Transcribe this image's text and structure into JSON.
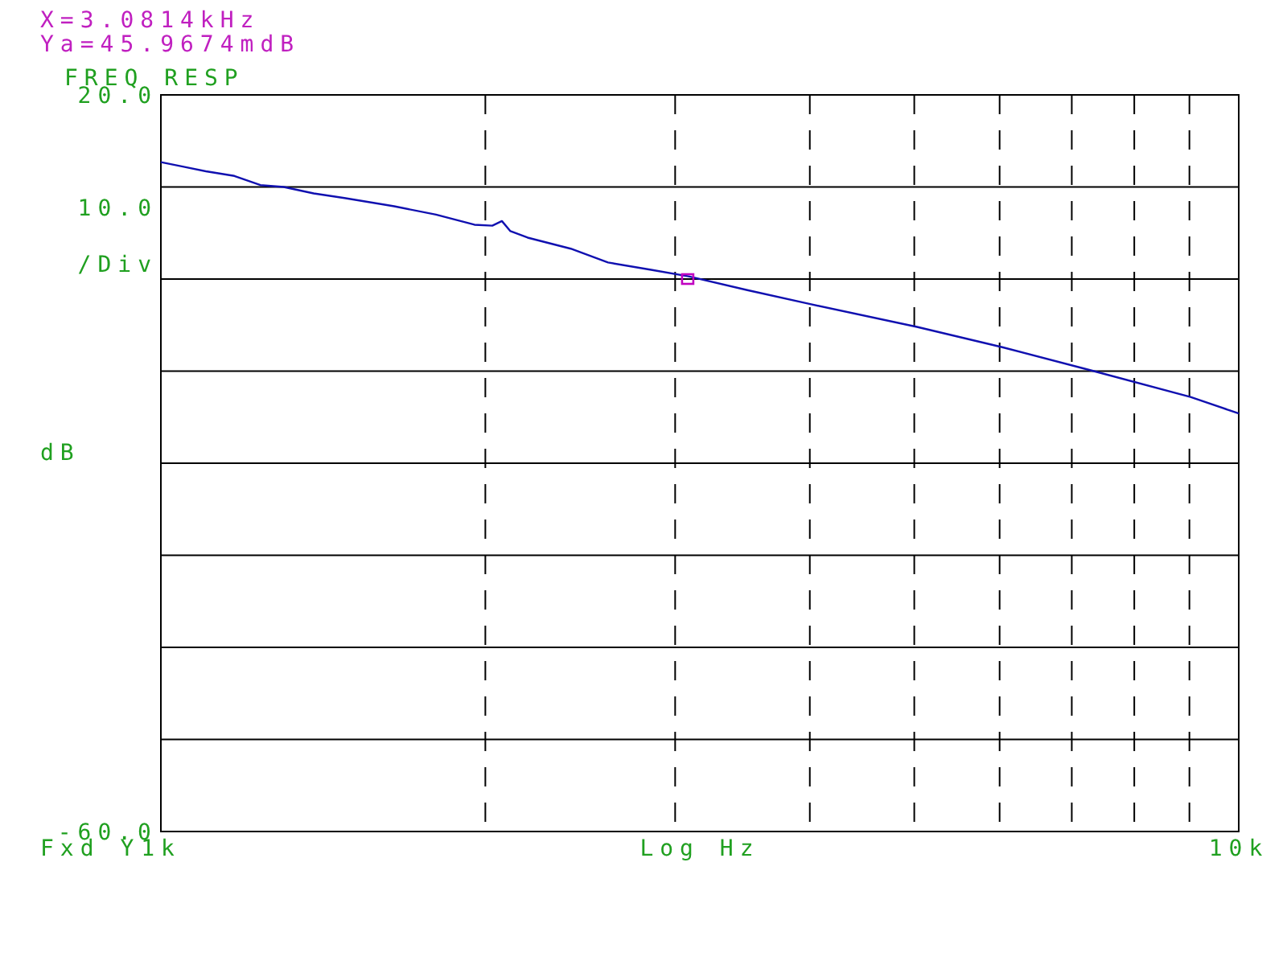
{
  "chart_data": {
    "type": "line",
    "title": "FREQ RESP",
    "xlabel": "Log Hz",
    "ylabel": "dB",
    "log": "x",
    "annotations": [
      "X=3.0814kHz",
      "Ya=45.9674mdB",
      "Fxd Y",
      "10.0 /Div"
    ],
    "xlim": [
      1000,
      10000
    ],
    "xticks": [
      {
        "value": 1000,
        "label": "1k"
      },
      {
        "value": 2000,
        "label": null
      },
      {
        "value": 3000,
        "label": null
      },
      {
        "value": 4000,
        "label": null
      },
      {
        "value": 5000,
        "label": null
      },
      {
        "value": 6000,
        "label": null
      },
      {
        "value": 7000,
        "label": null
      },
      {
        "value": 8000,
        "label": null
      },
      {
        "value": 9000,
        "label": null
      },
      {
        "value": 10000,
        "label": "10k"
      }
    ],
    "ylim": [
      -60,
      20
    ],
    "yticks": [
      {
        "value": -60,
        "label": "-60.0"
      },
      {
        "value": -50,
        "label": null
      },
      {
        "value": -40,
        "label": null
      },
      {
        "value": -30,
        "label": null
      },
      {
        "value": -20,
        "label": null
      },
      {
        "value": -10,
        "label": null
      },
      {
        "value": 0,
        "label": null
      },
      {
        "value": 10,
        "label": null
      },
      {
        "value": 20,
        "label": "20.0"
      }
    ],
    "grid": true,
    "series": [
      {
        "color": "#1010b0",
        "x": [
          1000,
          1050,
          1101,
          1170,
          1237,
          1300,
          1386,
          1480,
          1646,
          1800,
          1954,
          2030,
          2072,
          2110,
          2189,
          2400,
          2599,
          2850,
          3087,
          3500,
          3996,
          5029,
          6034,
          7338,
          9020,
          10000
        ],
        "values": [
          12.7,
          12.2,
          11.7,
          11.2,
          10.2,
          10.0,
          9.3,
          8.8,
          7.9,
          7.0,
          5.9,
          5.8,
          6.3,
          5.2,
          4.5,
          3.3,
          1.8,
          1.0,
          0.3,
          -1.2,
          -2.7,
          -5.2,
          -7.4,
          -10.0,
          -12.8,
          -14.6
        ]
      },
      {
        "type": "scatter",
        "marker": "square",
        "color": "#c000c0",
        "x": [
          3081.4
        ],
        "values": [
          0
        ]
      }
    ]
  }
}
